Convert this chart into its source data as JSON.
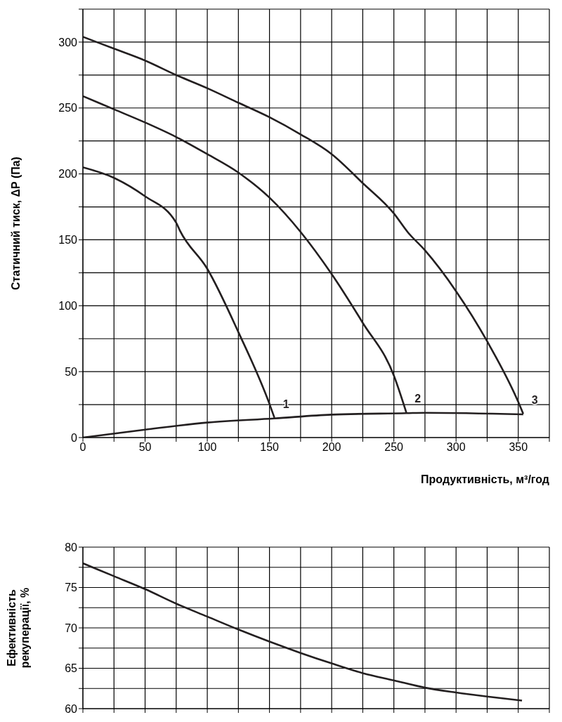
{
  "chart_data": [
    {
      "type": "line",
      "ylabel": "Статичний тиск, ΔP (Па)",
      "xlabel": "Продуктивність, м³/год",
      "xlim": [
        0,
        375
      ],
      "ylim": [
        0,
        325
      ],
      "xticks": [
        0,
        {
          "value": 25,
          "label": null
        },
        50,
        {
          "value": 75,
          "label": null
        },
        100,
        {
          "value": 125,
          "label": null
        },
        150,
        {
          "value": 175,
          "label": null
        },
        200,
        {
          "value": 225,
          "label": null
        },
        250,
        {
          "value": 275,
          "label": null
        },
        300,
        {
          "value": 325,
          "label": null
        },
        350,
        {
          "value": 375,
          "label": null
        }
      ],
      "yticks": [
        0,
        {
          "value": 25,
          "label": null
        },
        50,
        {
          "value": 75,
          "label": null
        },
        100,
        {
          "value": 125,
          "label": null
        },
        150,
        {
          "value": 175,
          "label": null
        },
        200,
        {
          "value": 225,
          "label": null
        },
        250,
        {
          "value": 275,
          "label": null
        },
        300,
        {
          "value": 325,
          "label": null
        }
      ],
      "grid": true,
      "marker": "none",
      "line_style": "solid",
      "series": [
        {
          "name": "1",
          "color": "#231f20",
          "x": [
            0,
            25,
            50,
            75,
            78,
            100,
            125,
            150,
            154
          ],
          "values": [
            205,
            197,
            183,
            163,
            157,
            128,
            80,
            25.5,
            15
          ]
        },
        {
          "name": "2",
          "color": "#231f20",
          "x": [
            0,
            25,
            50,
            75,
            100,
            125,
            150,
            175,
            200,
            225,
            250,
            260
          ],
          "values": [
            259,
            249,
            239,
            228,
            215,
            201,
            182,
            156,
            124,
            87,
            47,
            19
          ]
        },
        {
          "name": "3",
          "color": "#231f20",
          "x": [
            0,
            25,
            50,
            75,
            100,
            125,
            150,
            175,
            200,
            225,
            250,
            261,
            275,
            300,
            325,
            350,
            354
          ],
          "values": [
            304,
            295,
            286,
            275,
            265,
            254,
            243,
            230,
            215,
            193,
            170,
            156,
            142,
            111,
            73,
            27,
            18
          ]
        },
        {
          "color": "#231f20",
          "x": [
            0,
            50,
            100,
            154,
            200,
            260,
            275,
            354
          ],
          "values": [
            0,
            6,
            11.4,
            14.5,
            17.4,
            18.5,
            18.8,
            17.6
          ]
        }
      ]
    },
    {
      "type": "line",
      "ylabel": "Ефективність рекуперації, %",
      "xlim": [
        0,
        375
      ],
      "ylim": [
        60,
        80
      ],
      "tick_labels": "y",
      "xticks": [
        0,
        25,
        50,
        75,
        100,
        125,
        150,
        175,
        200,
        225,
        250,
        275,
        300,
        325,
        350,
        375
      ],
      "yticks": [
        60,
        {
          "value": 62.5,
          "label": null
        },
        65,
        {
          "value": 67.5,
          "label": null
        },
        70,
        {
          "value": 72.5,
          "label": null
        },
        75,
        {
          "value": 77.5,
          "label": null
        },
        80
      ],
      "grid": true,
      "marker": "none",
      "line_style": "solid",
      "series": [
        {
          "color": "#231f20",
          "x": [
            0,
            25,
            50,
            75,
            100,
            125,
            150,
            175,
            200,
            225,
            250,
            275,
            300,
            325,
            353
          ],
          "values": [
            78,
            76.4,
            74.8,
            73,
            71.4,
            69.8,
            68.3,
            66.9,
            65.6,
            64.4,
            63.5,
            62.6,
            62,
            61.5,
            61
          ]
        }
      ]
    }
  ]
}
